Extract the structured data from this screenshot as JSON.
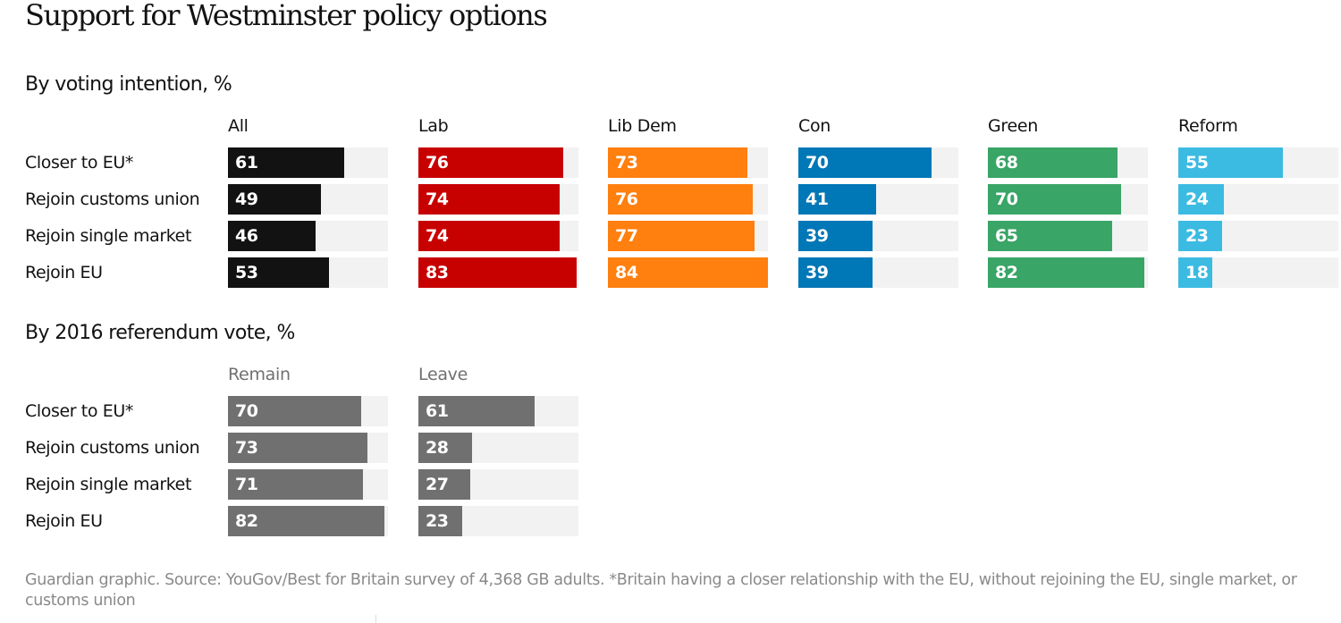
{
  "chart_data": [
    {
      "type": "bar",
      "orientation": "horizontal",
      "layout": "small-multiples",
      "title": "Support for Westminster policy options",
      "subtitle": "By voting intention, %",
      "categories": [
        "Closer to EU*",
        "Rejoin customs union",
        "Rejoin single market",
        "Rejoin EU"
      ],
      "xlim": [
        0,
        84
      ],
      "grid": false,
      "series": [
        {
          "name": "All",
          "color": "#121212",
          "values": [
            61,
            49,
            46,
            53
          ]
        },
        {
          "name": "Lab",
          "color": "#c70000",
          "values": [
            76,
            74,
            74,
            83
          ]
        },
        {
          "name": "Lib Dem",
          "color": "#ff7f0f",
          "values": [
            73,
            76,
            77,
            84
          ]
        },
        {
          "name": "Con",
          "color": "#0077b6",
          "values": [
            70,
            41,
            39,
            39
          ]
        },
        {
          "name": "Green",
          "color": "#39a566",
          "values": [
            68,
            70,
            65,
            82
          ]
        },
        {
          "name": "Reform",
          "color": "#3cbbe2",
          "values": [
            55,
            24,
            23,
            18
          ]
        }
      ]
    },
    {
      "type": "bar",
      "orientation": "horizontal",
      "layout": "small-multiples",
      "subtitle": "By 2016 referendum vote, %",
      "categories": [
        "Closer to EU*",
        "Rejoin customs union",
        "Rejoin single market",
        "Rejoin EU"
      ],
      "xlim": [
        0,
        84
      ],
      "grid": false,
      "series": [
        {
          "name": "Remain",
          "color": "#707070",
          "values": [
            70,
            73,
            71,
            82
          ]
        },
        {
          "name": "Leave",
          "color": "#707070",
          "values": [
            61,
            28,
            27,
            23
          ]
        }
      ]
    }
  ],
  "title": "Support for Westminster policy options",
  "sections": [
    {
      "heading": "By voting intention, %"
    },
    {
      "heading": "By 2016 referendum vote, %"
    }
  ],
  "footnote": "Guardian graphic. Source: YouGov/Best for Britain survey of 4,368 GB adults. *Britain having a closer relationship with the EU, without rejoining the EU, single market, or customs union",
  "colors": {
    "track": "#f2f2f2",
    "header_grey": "#707070",
    "footnote": "#8a8a8a"
  }
}
